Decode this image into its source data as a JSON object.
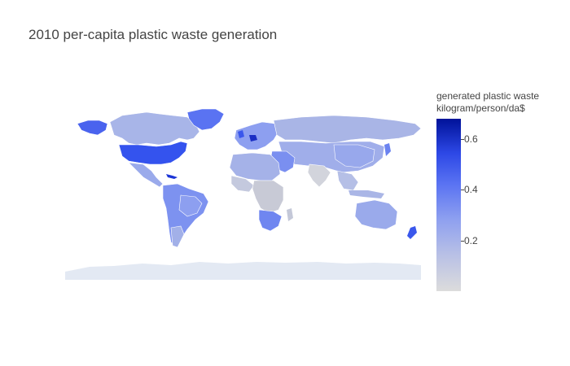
{
  "title": "2010 per-capita plastic waste generation",
  "colorbar": {
    "title_line1": "generated plastic waste",
    "title_line2": "kilogram/person/da$",
    "min": 0,
    "max": 0.68,
    "ticks": [
      {
        "value": 0.6,
        "label": "0.6"
      },
      {
        "value": 0.4,
        "label": "0.4"
      },
      {
        "value": 0.2,
        "label": "0.2"
      }
    ],
    "colors": [
      "#dcdcdc",
      "#b7bfe6",
      "#8d9ff0",
      "#5a73f2",
      "#2d48e6",
      "#001299"
    ]
  },
  "map": {
    "projection": "equirectangular",
    "missing_color": "#e6ecf5"
  }
}
